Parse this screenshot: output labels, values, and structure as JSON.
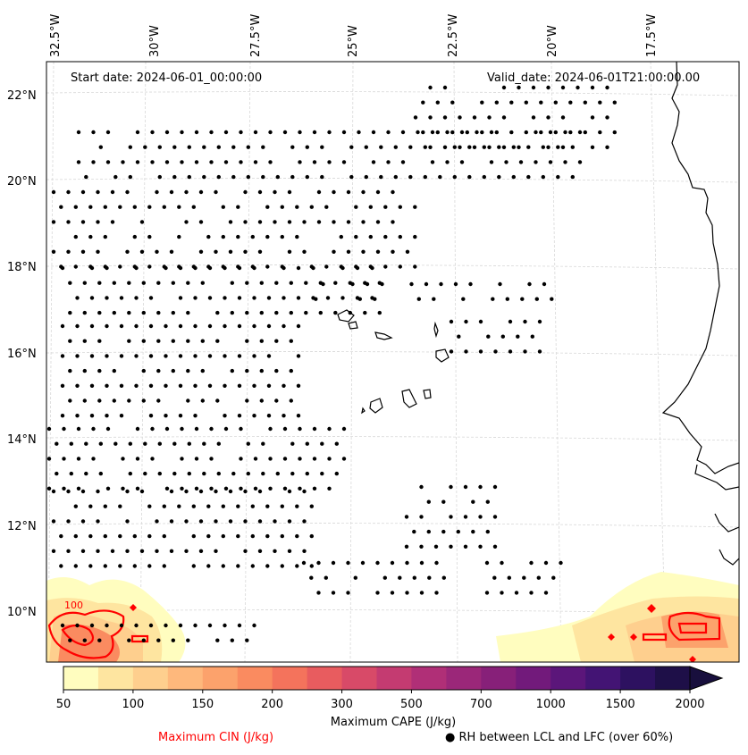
{
  "header": {
    "start_date": "Start date: 2024-06-01_00:00:00",
    "valid_date": "Valid_date: 2024-06-01T21:00:00.00"
  },
  "axes": {
    "lon_labels": [
      "32.5°W",
      "30°W",
      "27.5°W",
      "25°W",
      "22.5°W",
      "20°W",
      "17.5°W"
    ],
    "lat_labels": [
      "22°N",
      "20°N",
      "18°N",
      "16°N",
      "14°N",
      "12°N",
      "10°N"
    ]
  },
  "colorbar": {
    "title": "Maximum CAPE (J/kg)",
    "ticks": [
      "50",
      "100",
      "150",
      "200",
      "300",
      "500",
      "700",
      "1000",
      "1500",
      "2000"
    ],
    "colors": [
      "#fffdbf",
      "#fee5a0",
      "#fecf8e",
      "#feb87c",
      "#fca26c",
      "#fa8b60",
      "#f4735c",
      "#e85c5f",
      "#d84a68",
      "#c43b71",
      "#b02f77",
      "#9b2779",
      "#872079",
      "#721a7b",
      "#5b167a",
      "#431474",
      "#2d1160",
      "#1e0f48"
    ],
    "extend_color": "#180f3d"
  },
  "legend": {
    "cin_label": "Maximum CIN (J/kg)",
    "cin_color": "#ff0000",
    "rh_label": "RH between LCL and LFC (over 60%)",
    "rh_symbol": "●"
  },
  "cin_contour_label": "100"
}
